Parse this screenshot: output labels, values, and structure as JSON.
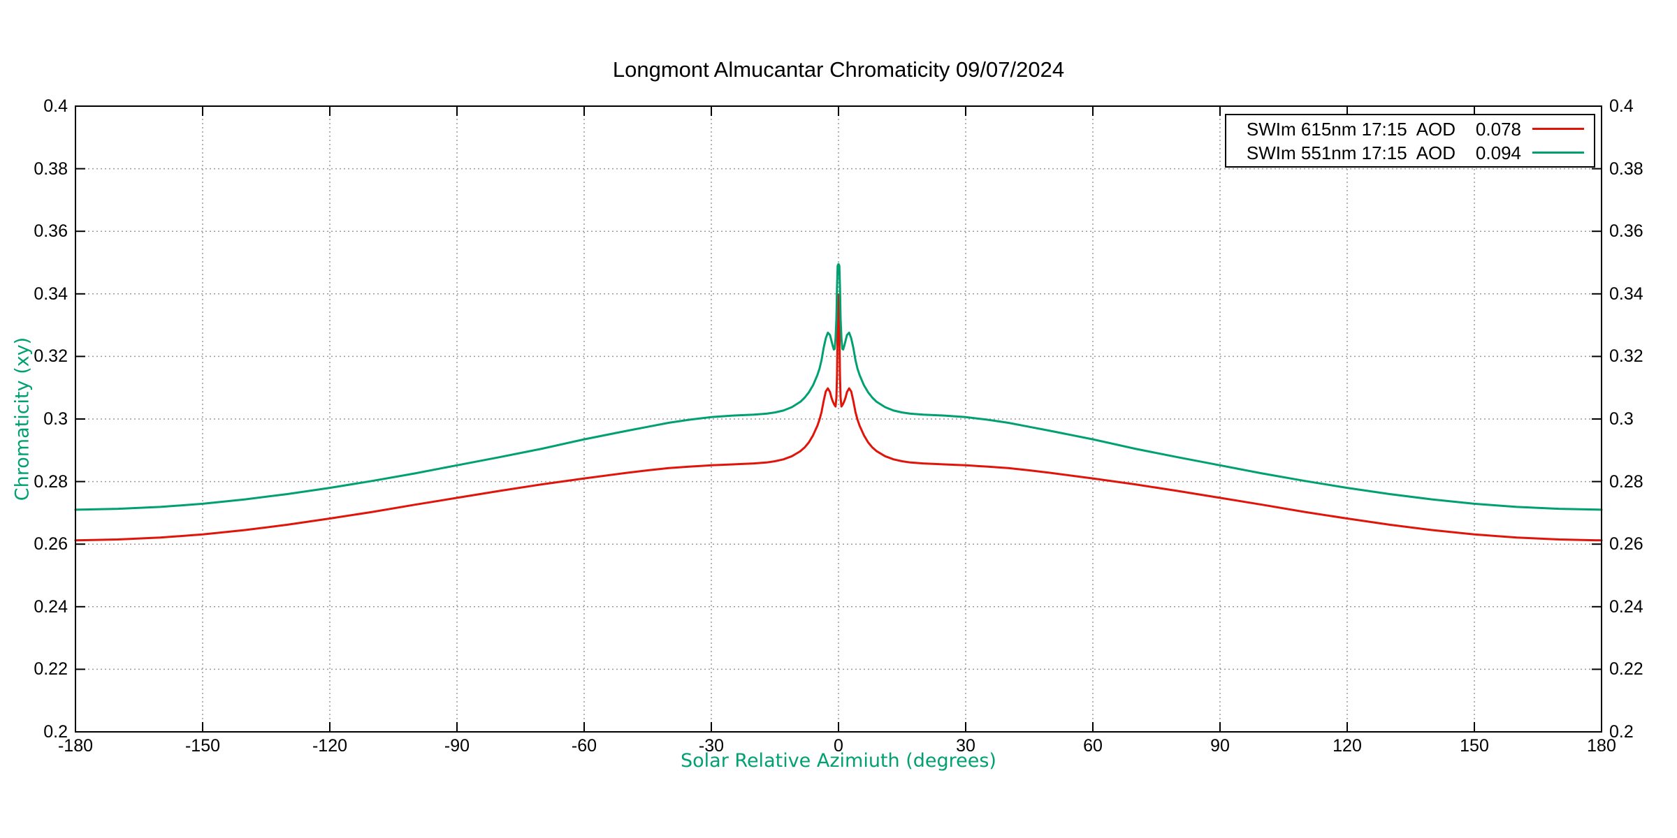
{
  "title": "Longmont Almucantar Chromaticity 09/07/2024",
  "accent_colors": {
    "axis_label_green": "#00a070",
    "grid_gray": "#9a9a9a",
    "frame_black": "#000000"
  },
  "chart_data": {
    "type": "line",
    "title": "Longmont Almucantar Chromaticity 09/07/2024",
    "xlabel": "Solar Relative Azimiuth (degrees)",
    "ylabel": "Chromaticity (xy)",
    "xlim": [
      -180,
      180
    ],
    "ylim": [
      0.2,
      0.4
    ],
    "grid": true,
    "grid_style": "dashed-gray",
    "legend_position": "top-right",
    "x_ticks": [
      -180,
      -150,
      -120,
      -90,
      -60,
      -30,
      0,
      30,
      60,
      90,
      120,
      150,
      180
    ],
    "x_tick_labels": [
      "-180",
      "-150",
      "-120",
      "-90",
      "-60",
      "-30",
      "0",
      "30",
      "60",
      "90",
      "120",
      "150",
      "180"
    ],
    "y_ticks": [
      0.4,
      0.38,
      0.36,
      0.34,
      0.32,
      0.3,
      0.28,
      0.26,
      0.24,
      0.22,
      0.2
    ],
    "y_tick_labels": [
      "0.4",
      "0.38",
      "0.36",
      "0.34",
      "0.32",
      "0.3",
      "0.28",
      "0.26",
      "0.24",
      "0.22",
      "0.2"
    ],
    "x": [
      -180,
      -170,
      -160,
      -150,
      -140,
      -130,
      -120,
      -110,
      -100,
      -90,
      -80,
      -70,
      -60,
      -50,
      -45,
      -40,
      -35,
      -30,
      -25,
      -20,
      -17,
      -15,
      -13,
      -11,
      -9,
      -8,
      -7,
      -6,
      -5,
      -4.5,
      -4,
      -3.5,
      -3,
      -2.5,
      -2,
      -1.7,
      -1.4,
      -1.1,
      -0.9,
      -0.7,
      -0.5,
      -0.35,
      -0.2,
      0,
      0.2,
      0.35,
      0.5,
      0.7,
      0.9,
      1.1,
      1.4,
      1.7,
      2,
      2.5,
      3,
      3.5,
      4,
      4.5,
      5,
      6,
      7,
      8,
      9,
      11,
      13,
      15,
      17,
      20,
      25,
      30,
      35,
      40,
      45,
      50,
      60,
      70,
      80,
      90,
      100,
      110,
      120,
      130,
      140,
      150,
      160,
      170,
      180
    ],
    "series": [
      {
        "name": "SWIm 615nm",
        "time": "17:15",
        "aod": "0.078",
        "legend_label": "SWIm 615nm 17:15  AOD    0.078",
        "color": "#e1140a",
        "values": [
          0.2612,
          0.2615,
          0.2621,
          0.2631,
          0.2645,
          0.2662,
          0.2682,
          0.2703,
          0.2726,
          0.2748,
          0.277,
          0.2791,
          0.281,
          0.2828,
          0.2836,
          0.2843,
          0.2848,
          0.2852,
          0.2855,
          0.2858,
          0.2861,
          0.2865,
          0.2871,
          0.2881,
          0.2897,
          0.2909,
          0.2925,
          0.2948,
          0.2978,
          0.2997,
          0.3022,
          0.3058,
          0.3088,
          0.3098,
          0.3086,
          0.307,
          0.3058,
          0.3049,
          0.3044,
          0.304,
          0.3068,
          0.314,
          0.329,
          0.3398,
          0.329,
          0.314,
          0.3068,
          0.304,
          0.3044,
          0.3049,
          0.3058,
          0.307,
          0.3086,
          0.3098,
          0.3088,
          0.3058,
          0.3022,
          0.2997,
          0.2978,
          0.2948,
          0.2925,
          0.2909,
          0.2897,
          0.2881,
          0.2871,
          0.2865,
          0.2861,
          0.2858,
          0.2855,
          0.2852,
          0.2848,
          0.2843,
          0.2836,
          0.2828,
          0.281,
          0.2791,
          0.277,
          0.2748,
          0.2726,
          0.2703,
          0.2682,
          0.2662,
          0.2645,
          0.2631,
          0.2621,
          0.2615,
          0.2612
        ]
      },
      {
        "name": "SWIm 551nm",
        "time": "17:15",
        "aod": "0.094",
        "legend_label": "SWIm 551nm 17:15  AOD    0.094",
        "color": "#00a070",
        "values": [
          0.271,
          0.2713,
          0.2719,
          0.2729,
          0.2743,
          0.276,
          0.278,
          0.2802,
          0.2826,
          0.2852,
          0.2878,
          0.2905,
          0.2935,
          0.2962,
          0.2975,
          0.2988,
          0.2998,
          0.3006,
          0.3011,
          0.3014,
          0.3017,
          0.3021,
          0.3027,
          0.3038,
          0.3055,
          0.3068,
          0.3085,
          0.3108,
          0.314,
          0.316,
          0.3188,
          0.3228,
          0.3258,
          0.3276,
          0.3268,
          0.3252,
          0.3236,
          0.3222,
          0.3224,
          0.3258,
          0.332,
          0.342,
          0.349,
          0.3495,
          0.349,
          0.342,
          0.332,
          0.3258,
          0.3224,
          0.3222,
          0.3236,
          0.3252,
          0.3268,
          0.3276,
          0.3258,
          0.3228,
          0.3188,
          0.316,
          0.314,
          0.3108,
          0.3085,
          0.3068,
          0.3055,
          0.3038,
          0.3027,
          0.3021,
          0.3017,
          0.3014,
          0.3011,
          0.3006,
          0.2998,
          0.2988,
          0.2975,
          0.2962,
          0.2935,
          0.2905,
          0.2878,
          0.2852,
          0.2826,
          0.2802,
          0.278,
          0.276,
          0.2743,
          0.2729,
          0.2719,
          0.2713,
          0.271
        ]
      }
    ]
  }
}
